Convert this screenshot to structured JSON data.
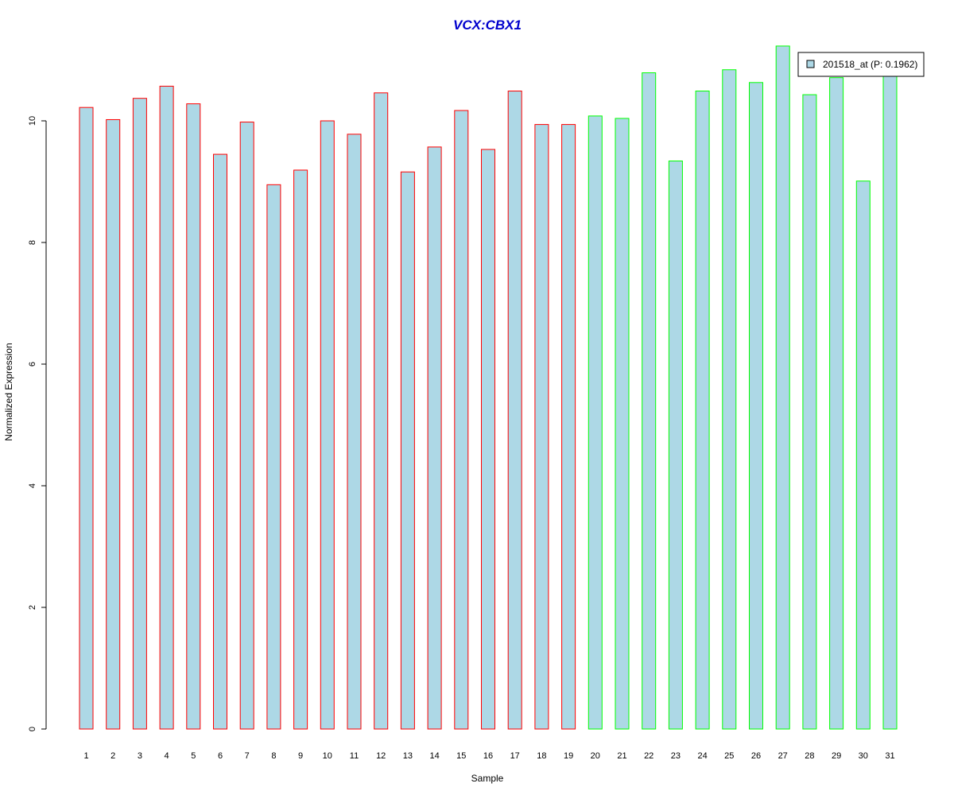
{
  "chart_data": {
    "type": "bar",
    "title": "VCX:CBX1",
    "xlabel": "Sample",
    "ylabel": "Normalized Expression",
    "ylim": [
      0,
      11.2
    ],
    "yticks": [
      "0",
      "2",
      "4",
      "6",
      "8",
      "10"
    ],
    "grid": false,
    "legend_position": "top-right",
    "categories": [
      "1",
      "2",
      "3",
      "4",
      "5",
      "6",
      "7",
      "8",
      "9",
      "10",
      "11",
      "12",
      "13",
      "14",
      "15",
      "16",
      "17",
      "18",
      "19",
      "20",
      "21",
      "22",
      "23",
      "24",
      "25",
      "26",
      "27",
      "28",
      "29",
      "30",
      "31"
    ],
    "values": [
      10.22,
      10.02,
      10.37,
      10.57,
      10.28,
      9.45,
      9.98,
      8.95,
      9.19,
      10.0,
      9.78,
      10.46,
      9.16,
      9.57,
      10.17,
      9.53,
      10.49,
      9.94,
      9.94,
      10.08,
      10.04,
      10.79,
      9.34,
      10.49,
      10.84,
      10.63,
      11.23,
      10.43,
      10.71,
      9.01,
      10.77
    ],
    "group_sizes": [
      19,
      12
    ],
    "colors": {
      "fill": "#ADD8E6",
      "border_group1": "#FF0000",
      "border_group2": "#00FF00",
      "title": "#0000CD",
      "axis": "#000000"
    },
    "legend": {
      "label": "201518_at (P: 0.1962)",
      "swatch_color": "#ADD8E6"
    }
  }
}
